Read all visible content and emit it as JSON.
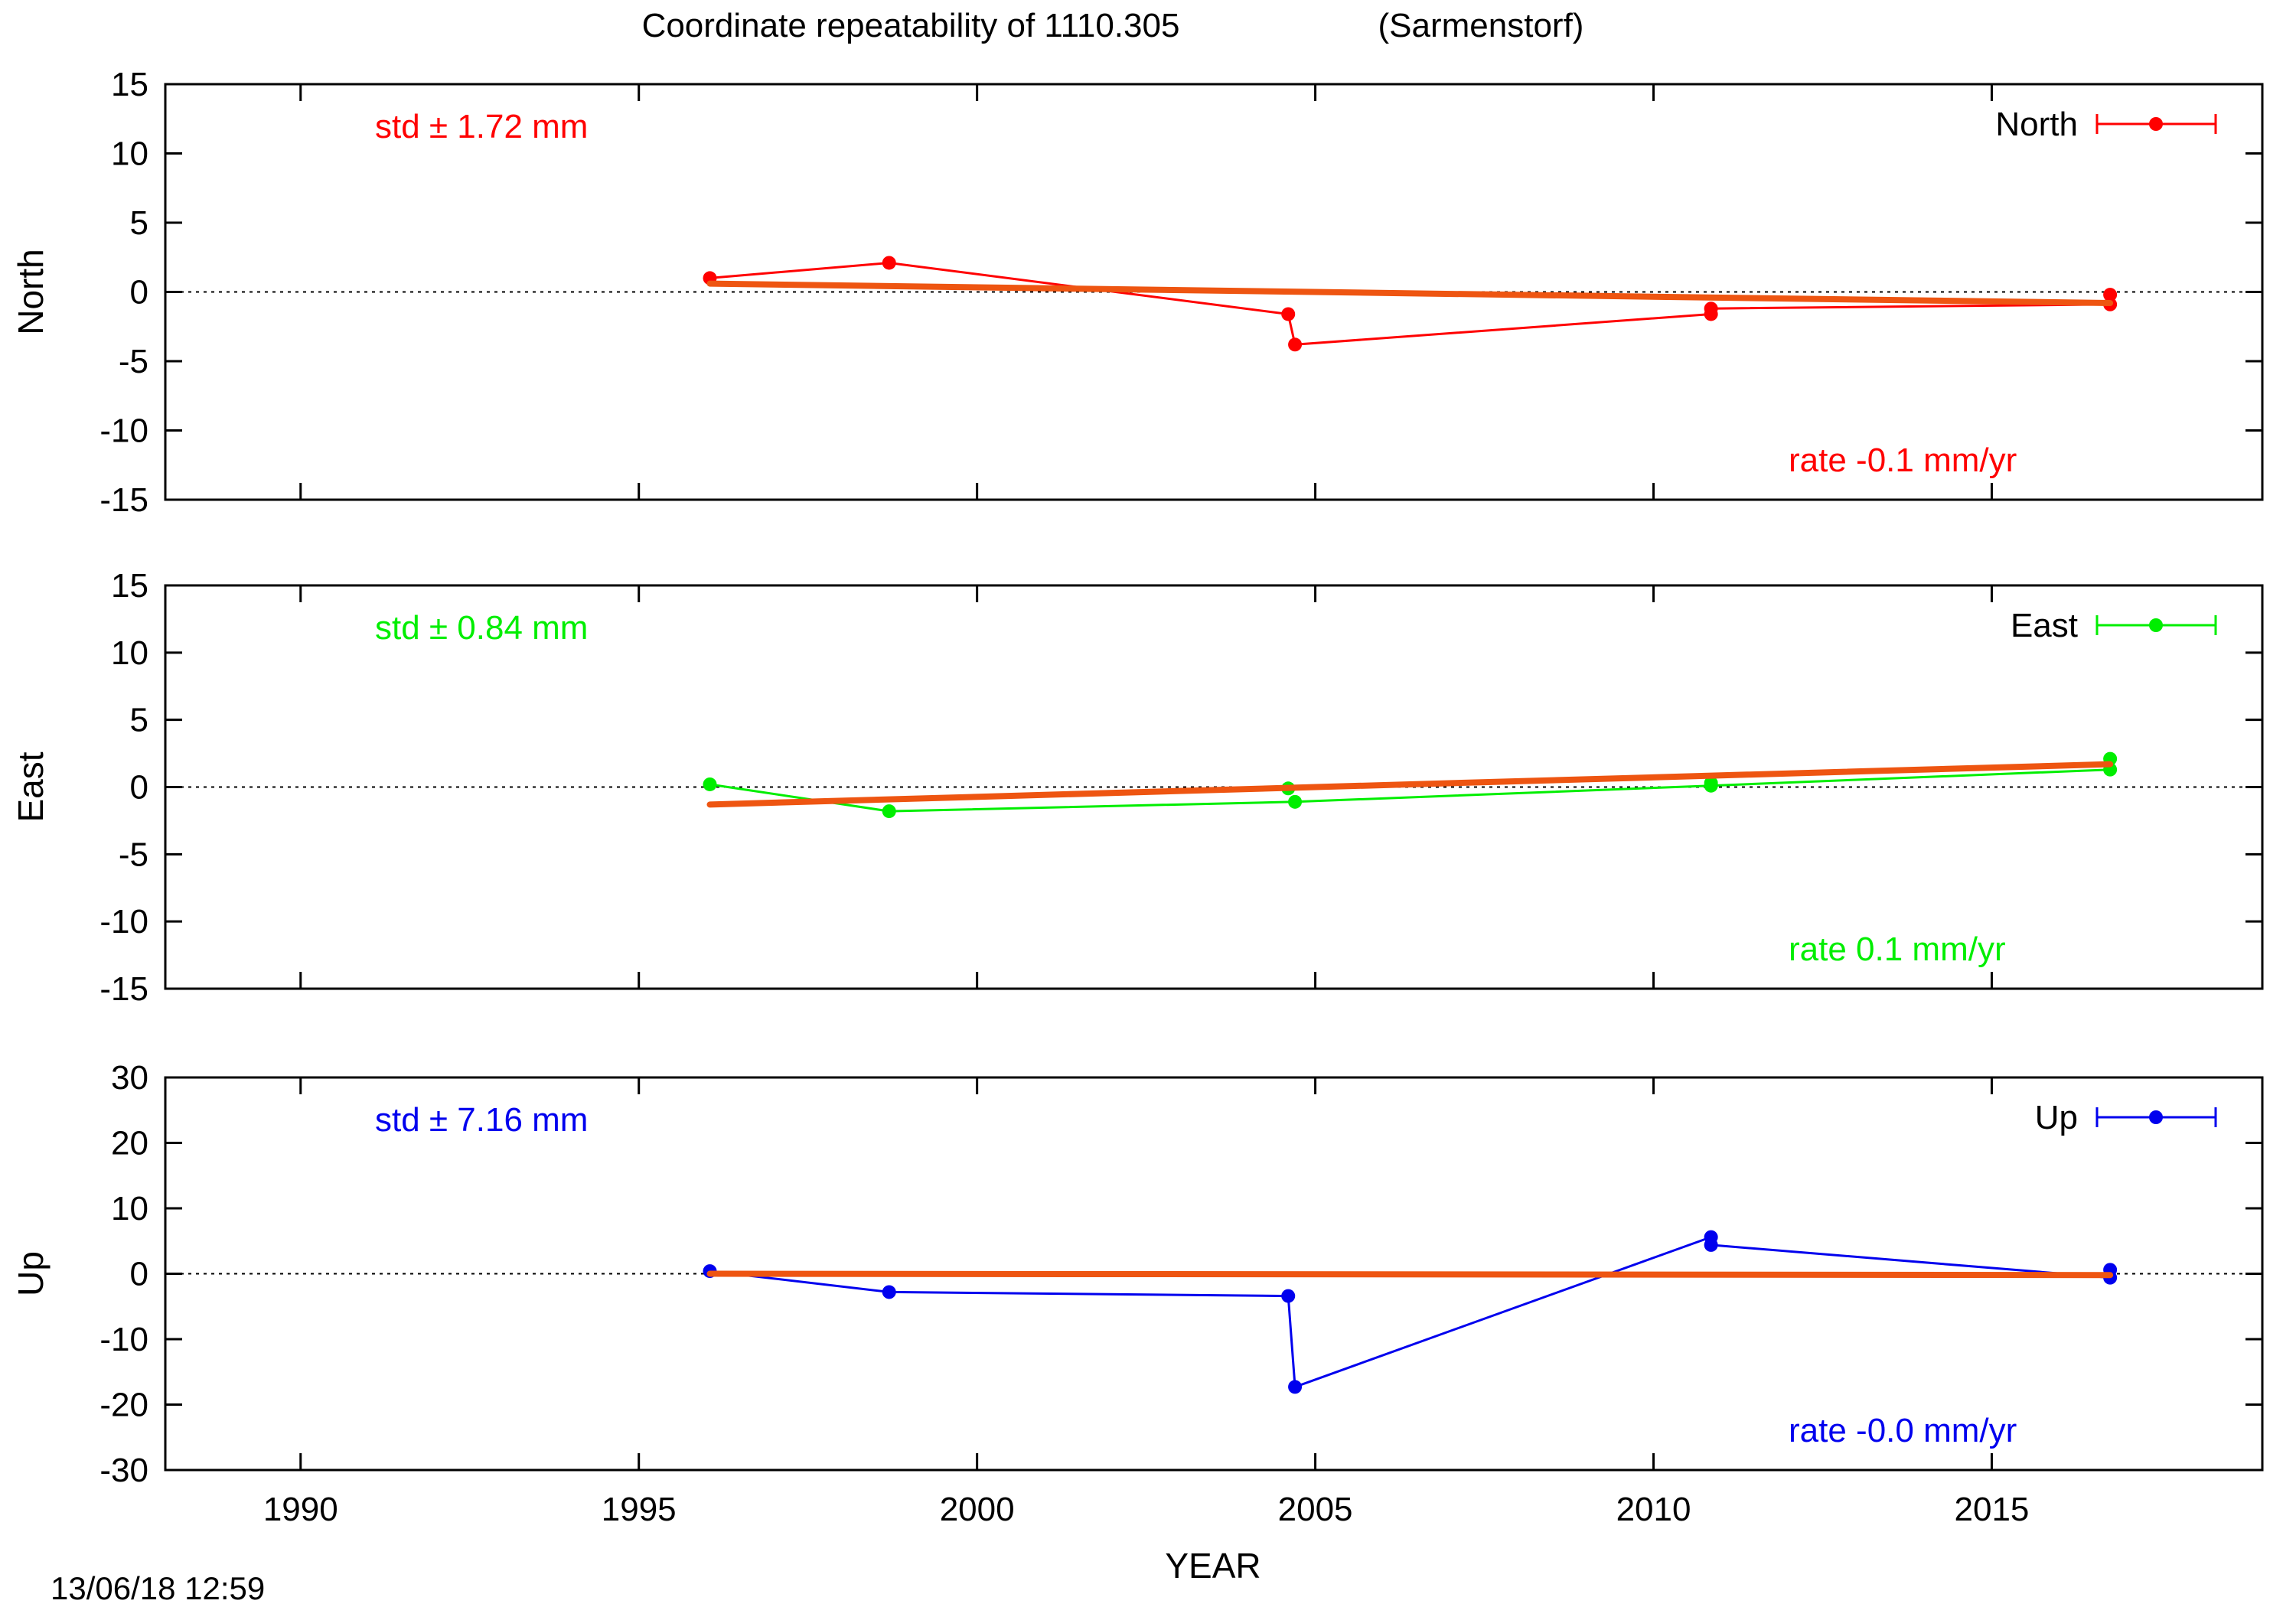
{
  "title": "Coordinate repeatability of 1110.305",
  "subtitle": "(Sarmenstorf)",
  "timestamp": "13/06/18 12:59",
  "xlabel": "YEAR",
  "colors": {
    "fit": "#ee5511",
    "axis": "#000000"
  },
  "chart_data": [
    {
      "type": "line",
      "panel": "North",
      "ylabel": "North",
      "ylim": [
        -15,
        15
      ],
      "yticks": [
        15,
        10,
        5,
        0,
        -5,
        -10,
        -15
      ],
      "xlim": [
        1988,
        2019
      ],
      "xticks": [
        1990,
        1995,
        2000,
        2005,
        2010,
        2015
      ],
      "grid": false,
      "legend_position": "top-right",
      "std_label": "std ± 1.72 mm",
      "rate_label": "rate -0.1 mm/yr",
      "series": [
        {
          "name": "North",
          "color": "#ff0000",
          "x": [
            1996.05,
            1998.7,
            2004.6,
            2004.7,
            2010.85,
            2010.85,
            2016.75,
            2016.75
          ],
          "y": [
            1.0,
            2.1,
            -1.6,
            -3.8,
            -1.6,
            -1.2,
            -0.9,
            -0.2
          ]
        }
      ],
      "fit": {
        "x": [
          1996.05,
          2016.75
        ],
        "y": [
          0.6,
          -0.8
        ]
      }
    },
    {
      "type": "line",
      "panel": "East",
      "ylabel": "East",
      "ylim": [
        -15,
        15
      ],
      "yticks": [
        15,
        10,
        5,
        0,
        -5,
        -10,
        -15
      ],
      "xlim": [
        1988,
        2019
      ],
      "xticks": [
        1990,
        1995,
        2000,
        2005,
        2010,
        2015
      ],
      "grid": false,
      "legend_position": "top-right",
      "std_label": "std ± 0.84 mm",
      "rate_label": "rate  0.1 mm/yr",
      "series": [
        {
          "name": "East",
          "color": "#00ee00",
          "x": [
            1996.05,
            1998.7,
            2004.6,
            2004.7,
            2010.85,
            2010.85,
            2016.75,
            2016.75
          ],
          "y": [
            0.2,
            -1.8,
            -0.1,
            -1.1,
            0.1,
            0.3,
            1.3,
            2.1
          ],
          "path_order": [
            0,
            1,
            3,
            4,
            6
          ]
        }
      ],
      "fit": {
        "x": [
          1996.05,
          2016.75
        ],
        "y": [
          -1.3,
          1.7
        ]
      }
    },
    {
      "type": "line",
      "panel": "Up",
      "ylabel": "Up",
      "ylim": [
        -30,
        30
      ],
      "yticks": [
        30,
        20,
        10,
        0,
        -10,
        -20,
        -30
      ],
      "xlim": [
        1988,
        2019
      ],
      "xticks": [
        1990,
        1995,
        2000,
        2005,
        2010,
        2015
      ],
      "grid": false,
      "legend_position": "top-right",
      "std_label": "std ± 7.16 mm",
      "rate_label": "rate -0.0 mm/yr",
      "series": [
        {
          "name": "Up",
          "color": "#0000ee",
          "x": [
            1996.05,
            1998.7,
            2004.6,
            2004.7,
            2010.85,
            2010.85,
            2016.75,
            2016.75
          ],
          "y": [
            0.4,
            -2.8,
            -3.4,
            -17.3,
            5.6,
            4.4,
            -0.6,
            0.6
          ]
        }
      ],
      "fit": {
        "x": [
          1996.05,
          2016.75
        ],
        "y": [
          0.0,
          -0.2
        ]
      }
    }
  ]
}
